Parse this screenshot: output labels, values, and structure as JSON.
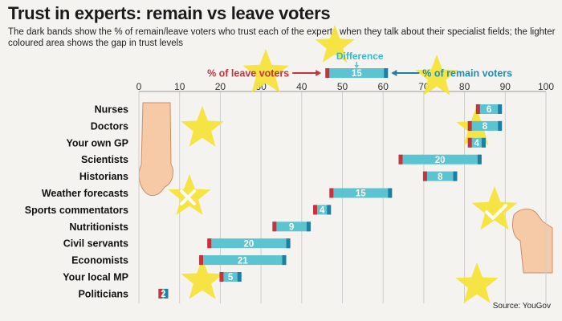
{
  "header": {
    "title": "Trust in experts: remain vs leave voters",
    "subtitle": "The dark bands show the % of remain/leave voters who trust each of the experts when they talk about their specialist fields; the lighter coloured area shows the gap in trust levels"
  },
  "source": "Source: YouGov",
  "colors": {
    "leave": "#c8323c",
    "remain": "#1d7fa3",
    "gap": "#5cc3d1",
    "star": "#f4e33a",
    "skin": "#f6c9a7"
  },
  "chart_data": {
    "type": "bar",
    "subtype": "range",
    "xlim": [
      0,
      100
    ],
    "xticks": [
      0,
      10,
      20,
      30,
      40,
      50,
      60,
      70,
      80,
      90,
      100
    ],
    "legend": {
      "leave_label": "% of leave voters",
      "remain_label": "% of remain voters",
      "difference_label": "Difference",
      "example": {
        "leave": 46,
        "remain": 61,
        "diff": 15
      }
    },
    "categories": [
      "Nurses",
      "Doctors",
      "Your own GP",
      "Scientists",
      "Historians",
      "Weather forecasts",
      "Sports commentators",
      "Nutritionists",
      "Civil servants",
      "Economists",
      "Your local MP",
      "Politicians"
    ],
    "series": [
      {
        "name": "% of leave voters",
        "values": [
          83,
          81,
          81,
          64,
          70,
          47,
          43,
          33,
          17,
          15,
          20,
          5
        ]
      },
      {
        "name": "% of remain voters",
        "values": [
          89,
          89,
          85,
          84,
          78,
          62,
          47,
          42,
          37,
          36,
          25,
          7
        ]
      }
    ],
    "difference": [
      6,
      8,
      4,
      20,
      8,
      15,
      4,
      9,
      20,
      21,
      5,
      2
    ]
  }
}
